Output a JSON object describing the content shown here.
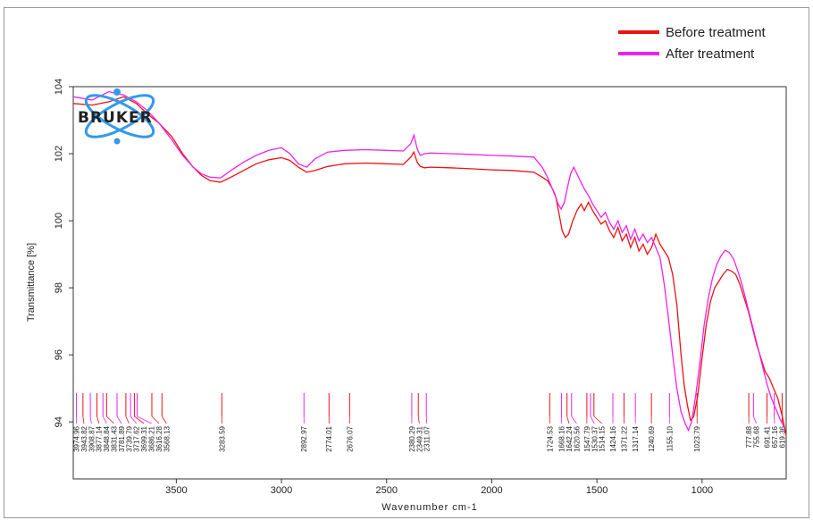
{
  "chart_data": {
    "type": "line",
    "title": "",
    "xlabel": "Wavenumber cm-1",
    "ylabel": "Transmittance [%]",
    "xlim": [
      3990,
      600
    ],
    "ylim": [
      92.3,
      104
    ],
    "x_reversed": true,
    "x_ticks": [
      3500,
      3000,
      2500,
      2000,
      1500,
      1000
    ],
    "y_ticks": [
      94,
      96,
      98,
      100,
      102,
      104
    ],
    "legend_position": "top-right",
    "series": [
      {
        "name": "Before treatment",
        "color": "#ee1111",
        "points": [
          [
            3990,
            103.5
          ],
          [
            3900,
            103.45
          ],
          [
            3820,
            103.55
          ],
          [
            3750,
            103.7
          ],
          [
            3690,
            103.5
          ],
          [
            3640,
            103.2
          ],
          [
            3580,
            102.9
          ],
          [
            3520,
            102.5
          ],
          [
            3470,
            102.0
          ],
          [
            3420,
            101.6
          ],
          [
            3380,
            101.35
          ],
          [
            3340,
            101.2
          ],
          [
            3290,
            101.15
          ],
          [
            3240,
            101.3
          ],
          [
            3180,
            101.5
          ],
          [
            3120,
            101.7
          ],
          [
            3060,
            101.82
          ],
          [
            3000,
            101.88
          ],
          [
            2960,
            101.8
          ],
          [
            2920,
            101.6
          ],
          [
            2880,
            101.45
          ],
          [
            2840,
            101.5
          ],
          [
            2780,
            101.62
          ],
          [
            2700,
            101.7
          ],
          [
            2600,
            101.72
          ],
          [
            2500,
            101.7
          ],
          [
            2420,
            101.68
          ],
          [
            2385,
            101.9
          ],
          [
            2370,
            102.05
          ],
          [
            2355,
            101.75
          ],
          [
            2340,
            101.62
          ],
          [
            2320,
            101.58
          ],
          [
            2290,
            101.6
          ],
          [
            2200,
            101.58
          ],
          [
            2100,
            101.55
          ],
          [
            2000,
            101.52
          ],
          [
            1900,
            101.5
          ],
          [
            1800,
            101.45
          ],
          [
            1760,
            101.3
          ],
          [
            1735,
            101.2
          ],
          [
            1715,
            101.0
          ],
          [
            1695,
            100.7
          ],
          [
            1680,
            100.2
          ],
          [
            1665,
            99.7
          ],
          [
            1650,
            99.5
          ],
          [
            1635,
            99.6
          ],
          [
            1615,
            100.0
          ],
          [
            1595,
            100.3
          ],
          [
            1575,
            100.5
          ],
          [
            1560,
            100.3
          ],
          [
            1540,
            100.55
          ],
          [
            1520,
            100.3
          ],
          [
            1500,
            100.1
          ],
          [
            1480,
            99.9
          ],
          [
            1460,
            100.0
          ],
          [
            1440,
            99.7
          ],
          [
            1420,
            99.5
          ],
          [
            1400,
            99.8
          ],
          [
            1380,
            99.4
          ],
          [
            1360,
            99.6
          ],
          [
            1340,
            99.2
          ],
          [
            1320,
            99.5
          ],
          [
            1300,
            99.1
          ],
          [
            1280,
            99.3
          ],
          [
            1260,
            99.0
          ],
          [
            1240,
            99.2
          ],
          [
            1220,
            99.6
          ],
          [
            1200,
            99.3
          ],
          [
            1180,
            99.1
          ],
          [
            1160,
            98.9
          ],
          [
            1140,
            98.4
          ],
          [
            1120,
            97.5
          ],
          [
            1100,
            96.0
          ],
          [
            1085,
            95.1
          ],
          [
            1070,
            94.5
          ],
          [
            1055,
            94.05
          ],
          [
            1040,
            94.15
          ],
          [
            1020,
            94.8
          ],
          [
            1000,
            95.9
          ],
          [
            980,
            96.9
          ],
          [
            960,
            97.6
          ],
          [
            940,
            98.0
          ],
          [
            920,
            98.2
          ],
          [
            900,
            98.4
          ],
          [
            880,
            98.55
          ],
          [
            860,
            98.5
          ],
          [
            840,
            98.4
          ],
          [
            820,
            98.1
          ],
          [
            800,
            97.7
          ],
          [
            780,
            97.3
          ],
          [
            760,
            96.8
          ],
          [
            740,
            96.3
          ],
          [
            720,
            95.9
          ],
          [
            700,
            95.5
          ],
          [
            680,
            95.3
          ],
          [
            660,
            95.0
          ],
          [
            640,
            94.7
          ],
          [
            620,
            94.2
          ],
          [
            600,
            93.6
          ]
        ]
      },
      {
        "name": "After treatment",
        "color": "#ee22ee",
        "points": [
          [
            3990,
            103.7
          ],
          [
            3900,
            103.6
          ],
          [
            3820,
            103.85
          ],
          [
            3750,
            103.75
          ],
          [
            3690,
            103.55
          ],
          [
            3640,
            103.3
          ],
          [
            3580,
            102.9
          ],
          [
            3520,
            102.4
          ],
          [
            3470,
            101.95
          ],
          [
            3420,
            101.6
          ],
          [
            3380,
            101.4
          ],
          [
            3340,
            101.3
          ],
          [
            3290,
            101.28
          ],
          [
            3240,
            101.5
          ],
          [
            3180,
            101.75
          ],
          [
            3120,
            101.95
          ],
          [
            3060,
            102.1
          ],
          [
            3000,
            102.18
          ],
          [
            2960,
            102.0
          ],
          [
            2920,
            101.7
          ],
          [
            2880,
            101.6
          ],
          [
            2840,
            101.85
          ],
          [
            2780,
            102.05
          ],
          [
            2700,
            102.1
          ],
          [
            2600,
            102.12
          ],
          [
            2500,
            102.1
          ],
          [
            2420,
            102.08
          ],
          [
            2385,
            102.3
          ],
          [
            2370,
            102.55
          ],
          [
            2355,
            102.15
          ],
          [
            2340,
            101.95
          ],
          [
            2320,
            102.0
          ],
          [
            2290,
            102.02
          ],
          [
            2200,
            102.0
          ],
          [
            2100,
            101.98
          ],
          [
            2000,
            101.95
          ],
          [
            1900,
            101.93
          ],
          [
            1800,
            101.9
          ],
          [
            1760,
            101.6
          ],
          [
            1735,
            101.3
          ],
          [
            1715,
            101.0
          ],
          [
            1700,
            100.8
          ],
          [
            1685,
            100.5
          ],
          [
            1670,
            100.35
          ],
          [
            1655,
            100.55
          ],
          [
            1640,
            101.0
          ],
          [
            1625,
            101.4
          ],
          [
            1610,
            101.6
          ],
          [
            1595,
            101.4
          ],
          [
            1580,
            101.2
          ],
          [
            1560,
            100.95
          ],
          [
            1540,
            100.75
          ],
          [
            1520,
            100.5
          ],
          [
            1500,
            100.3
          ],
          [
            1480,
            100.1
          ],
          [
            1460,
            100.25
          ],
          [
            1440,
            99.95
          ],
          [
            1420,
            99.75
          ],
          [
            1400,
            100.0
          ],
          [
            1380,
            99.65
          ],
          [
            1360,
            99.85
          ],
          [
            1340,
            99.45
          ],
          [
            1320,
            99.75
          ],
          [
            1300,
            99.4
          ],
          [
            1280,
            99.6
          ],
          [
            1260,
            99.35
          ],
          [
            1240,
            99.5
          ],
          [
            1220,
            99.2
          ],
          [
            1200,
            98.9
          ],
          [
            1180,
            98.1
          ],
          [
            1160,
            97.1
          ],
          [
            1140,
            96.0
          ],
          [
            1120,
            95.0
          ],
          [
            1100,
            94.3
          ],
          [
            1080,
            93.95
          ],
          [
            1065,
            93.75
          ],
          [
            1050,
            94.0
          ],
          [
            1030,
            94.8
          ],
          [
            1010,
            95.8
          ],
          [
            990,
            96.9
          ],
          [
            970,
            97.7
          ],
          [
            950,
            98.3
          ],
          [
            930,
            98.7
          ],
          [
            910,
            98.95
          ],
          [
            890,
            99.12
          ],
          [
            870,
            99.05
          ],
          [
            850,
            98.85
          ],
          [
            830,
            98.5
          ],
          [
            810,
            98.1
          ],
          [
            790,
            97.6
          ],
          [
            770,
            97.1
          ],
          [
            750,
            96.6
          ],
          [
            730,
            96.1
          ],
          [
            710,
            95.6
          ],
          [
            690,
            95.1
          ],
          [
            670,
            94.7
          ],
          [
            650,
            94.4
          ],
          [
            630,
            94.1
          ],
          [
            610,
            93.85
          ]
        ]
      }
    ],
    "peak_labels": [
      {
        "x": 3974.96,
        "label": "3974.96",
        "color": "#ee22ee"
      },
      {
        "x": 3943.82,
        "label": "3943.82",
        "color": "#ee1111"
      },
      {
        "x": 3908.87,
        "label": "3908.87",
        "color": "#ee22ee"
      },
      {
        "x": 3877.14,
        "label": "3877.14",
        "color": "#ee1111"
      },
      {
        "x": 3848.84,
        "label": "3848.84",
        "color": "#ee22ee"
      },
      {
        "x": 3831.43,
        "label": "3831.43",
        "color": "#ee1111"
      },
      {
        "x": 3781.89,
        "label": "3781.89",
        "color": "#ee22ee"
      },
      {
        "x": 3739.79,
        "label": "3739.79",
        "color": "#ee1111"
      },
      {
        "x": 3717.62,
        "label": "3717.62",
        "color": "#ee22ee"
      },
      {
        "x": 3699.31,
        "label": "3699.31",
        "color": "#ee1111"
      },
      {
        "x": 3686.21,
        "label": "3686.21",
        "color": "#ee22ee"
      },
      {
        "x": 3616.28,
        "label": "3616.28",
        "color": "#ee1111"
      },
      {
        "x": 3568.13,
        "label": "3568.13",
        "color": "#ee1111"
      },
      {
        "x": 3283.59,
        "label": "3283.59",
        "color": "#ee1111"
      },
      {
        "x": 2892.97,
        "label": "2892.97",
        "color": "#ee22ee"
      },
      {
        "x": 2774.01,
        "label": "2774.01",
        "color": "#ee1111"
      },
      {
        "x": 2676.07,
        "label": "2676.07",
        "color": "#ee1111"
      },
      {
        "x": 2380.29,
        "label": "2380.29",
        "color": "#ee22ee"
      },
      {
        "x": 2349.31,
        "label": "2349.31",
        "color": "#ee1111"
      },
      {
        "x": 2311.07,
        "label": "2311.07",
        "color": "#ee22ee"
      },
      {
        "x": 1724.53,
        "label": "1724.53",
        "color": "#ee1111"
      },
      {
        "x": 1668.16,
        "label": "1668.16",
        "color": "#ee22ee"
      },
      {
        "x": 1642.24,
        "label": "1642.24",
        "color": "#ee1111"
      },
      {
        "x": 1620.56,
        "label": "1620.56",
        "color": "#ee22ee"
      },
      {
        "x": 1547.79,
        "label": "1547.79",
        "color": "#ee1111"
      },
      {
        "x": 1530.37,
        "label": "1530.37",
        "color": "#ee22ee"
      },
      {
        "x": 1514.15,
        "label": "1514.15",
        "color": "#ee1111"
      },
      {
        "x": 1424.16,
        "label": "1424.16",
        "color": "#ee22ee"
      },
      {
        "x": 1371.22,
        "label": "1371.22",
        "color": "#ee1111"
      },
      {
        "x": 1317.14,
        "label": "1317.14",
        "color": "#ee22ee"
      },
      {
        "x": 1240.69,
        "label": "1240.69",
        "color": "#ee1111"
      },
      {
        "x": 1155.1,
        "label": "1155.10",
        "color": "#ee22ee"
      },
      {
        "x": 1023.79,
        "label": "1023.79",
        "color": "#ee1111"
      },
      {
        "x": 777.88,
        "label": "777.88",
        "color": "#ee1111"
      },
      {
        "x": 755.68,
        "label": "755.68",
        "color": "#ee22ee"
      },
      {
        "x": 691.41,
        "label": "691.41",
        "color": "#ee1111"
      },
      {
        "x": 657.16,
        "label": "657.16",
        "color": "#ee22ee"
      },
      {
        "x": 619.36,
        "label": "619.36",
        "color": "#ee1111"
      }
    ],
    "logo_text": "BRUKER",
    "logo_color": "#3399ee"
  }
}
